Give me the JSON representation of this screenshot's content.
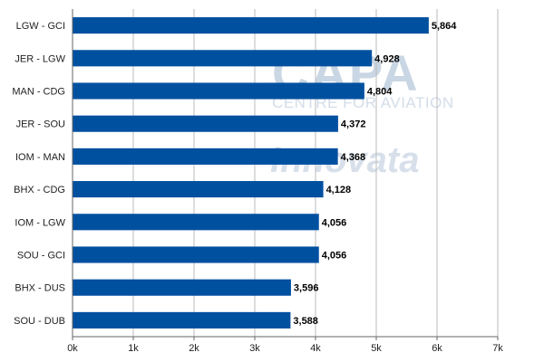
{
  "chart_data": {
    "type": "bar",
    "orientation": "horizontal",
    "categories": [
      "LGW - GCI",
      "JER - LGW",
      "MAN - CDG",
      "JER - SOU",
      "IOM - MAN",
      "BHX - CDG",
      "IOM - LGW",
      "SOU - GCI",
      "BHX - DUS",
      "SOU - DUB"
    ],
    "values": [
      5864,
      4928,
      4804,
      4372,
      4368,
      4128,
      4056,
      4056,
      3596,
      3588
    ],
    "value_labels": [
      "5,864",
      "4,928",
      "4,804",
      "4,372",
      "4,368",
      "4,128",
      "4,056",
      "4,056",
      "3,596",
      "3,588"
    ],
    "xlim": [
      0,
      7000
    ],
    "x_ticks": [
      0,
      1000,
      2000,
      3000,
      4000,
      5000,
      6000,
      7000
    ],
    "x_tick_labels": [
      "0k",
      "1k",
      "2k",
      "3k",
      "4k",
      "5k",
      "6k",
      "7k"
    ],
    "grid": true,
    "bar_color": "#0050a0",
    "title": "",
    "xlabel": "",
    "ylabel": ""
  },
  "watermark": {
    "logo": "CAPA",
    "subtitle": "CENTRE FOR AVIATION",
    "brand": "Innovata"
  }
}
